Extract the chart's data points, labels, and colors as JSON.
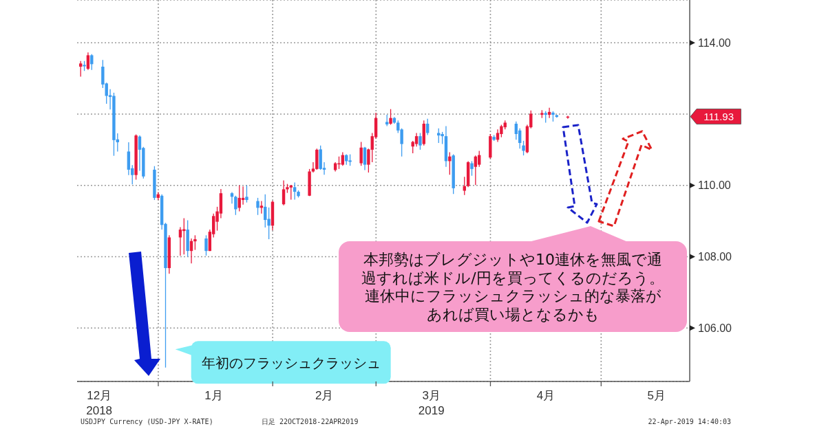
{
  "chart_data": {
    "type": "candlestick",
    "x": [
      "2018-12-11",
      "2018-12-12",
      "2018-12-13",
      "2018-12-14",
      "2018-12-17",
      "2018-12-18",
      "2018-12-19",
      "2018-12-20",
      "2018-12-21",
      "2018-12-24",
      "2018-12-25",
      "2018-12-26",
      "2018-12-27",
      "2018-12-28",
      "2018-12-31",
      "2019-01-01",
      "2019-01-02",
      "2019-01-03",
      "2019-01-04",
      "2019-01-07",
      "2019-01-08",
      "2019-01-09",
      "2019-01-10",
      "2019-01-11",
      "2019-01-14",
      "2019-01-15",
      "2019-01-16",
      "2019-01-17",
      "2019-01-18",
      "2019-01-21",
      "2019-01-22",
      "2019-01-23",
      "2019-01-24",
      "2019-01-25",
      "2019-01-28",
      "2019-01-29",
      "2019-01-30",
      "2019-01-31",
      "2019-02-01",
      "2019-02-04",
      "2019-02-05",
      "2019-02-06",
      "2019-02-07",
      "2019-02-08",
      "2019-02-11",
      "2019-02-12",
      "2019-02-13",
      "2019-02-14",
      "2019-02-15",
      "2019-02-18",
      "2019-02-19",
      "2019-02-20",
      "2019-02-21",
      "2019-02-22",
      "2019-02-25",
      "2019-02-26",
      "2019-02-27",
      "2019-02-28",
      "2019-03-01",
      "2019-03-04",
      "2019-03-05",
      "2019-03-06",
      "2019-03-07",
      "2019-03-08",
      "2019-03-11",
      "2019-03-12",
      "2019-03-13",
      "2019-03-14",
      "2019-03-15",
      "2019-03-18",
      "2019-03-19",
      "2019-03-20",
      "2019-03-21",
      "2019-03-22",
      "2019-03-25",
      "2019-03-26",
      "2019-03-27",
      "2019-03-28",
      "2019-03-29",
      "2019-04-01",
      "2019-04-02",
      "2019-04-03",
      "2019-04-04",
      "2019-04-05",
      "2019-04-08",
      "2019-04-09",
      "2019-04-10",
      "2019-04-11",
      "2019-04-12",
      "2019-04-15",
      "2019-04-16",
      "2019-04-17",
      "2019-04-18",
      "2019-04-19",
      "2019-04-22"
    ],
    "ohlc": [
      [
        113.33,
        113.49,
        113.05,
        113.42
      ],
      [
        113.38,
        113.49,
        113.21,
        113.34
      ],
      [
        113.27,
        113.73,
        113.24,
        113.65
      ],
      [
        113.65,
        113.68,
        113.24,
        113.4
      ],
      [
        113.33,
        113.52,
        112.73,
        112.83
      ],
      [
        112.86,
        112.88,
        112.29,
        112.51
      ],
      [
        112.53,
        112.7,
        112.13,
        112.48
      ],
      [
        112.51,
        112.6,
        110.83,
        111.27
      ],
      [
        111.29,
        111.46,
        110.95,
        111.21
      ],
      [
        110.95,
        111.21,
        110.29,
        110.44
      ],
      [
        110.48,
        110.57,
        110.03,
        110.29
      ],
      [
        110.29,
        111.43,
        110.16,
        111.4
      ],
      [
        111.37,
        111.4,
        110.41,
        111.0
      ],
      [
        111.05,
        111.08,
        110.19,
        110.25
      ],
      [
        110.44,
        110.54,
        109.59,
        109.65
      ],
      [
        109.65,
        109.81,
        109.59,
        109.75
      ],
      [
        109.71,
        109.75,
        108.76,
        108.89
      ],
      [
        108.92,
        108.95,
        104.89,
        107.68
      ],
      [
        107.68,
        108.6,
        107.52,
        108.54
      ],
      [
        108.54,
        108.83,
        108.03,
        108.76
      ],
      [
        108.72,
        109.08,
        108.06,
        108.77
      ],
      [
        108.76,
        109.02,
        108.0,
        108.16
      ],
      [
        108.16,
        108.51,
        107.81,
        108.44
      ],
      [
        108.43,
        108.6,
        108.19,
        108.49
      ],
      [
        108.51,
        108.6,
        108.03,
        108.16
      ],
      [
        108.16,
        108.76,
        108.16,
        108.7
      ],
      [
        108.63,
        109.21,
        108.54,
        109.14
      ],
      [
        108.98,
        109.4,
        108.73,
        109.27
      ],
      [
        109.21,
        109.9,
        109.08,
        109.78
      ],
      [
        109.78,
        109.81,
        109.49,
        109.68
      ],
      [
        109.68,
        109.71,
        109.17,
        109.33
      ],
      [
        109.37,
        110.0,
        109.27,
        109.65
      ],
      [
        109.59,
        109.97,
        109.46,
        109.65
      ],
      [
        109.68,
        110.0,
        109.52,
        109.59
      ],
      [
        109.56,
        109.65,
        109.17,
        109.37
      ],
      [
        109.37,
        109.56,
        109.21,
        109.43
      ],
      [
        109.4,
        109.75,
        108.82,
        109.03
      ],
      [
        109.06,
        109.38,
        108.49,
        108.87
      ],
      [
        108.87,
        109.57,
        108.74,
        109.54
      ],
      [
        109.47,
        110.14,
        109.44,
        109.89
      ],
      [
        109.89,
        110.04,
        109.79,
        109.95
      ],
      [
        109.94,
        110.01,
        109.6,
        110.0
      ],
      [
        109.95,
        110.08,
        109.6,
        109.82
      ],
      [
        109.82,
        109.86,
        109.66,
        109.7
      ],
      [
        109.71,
        110.46,
        109.7,
        110.39
      ],
      [
        110.39,
        110.65,
        110.36,
        110.47
      ],
      [
        110.46,
        111.03,
        110.44,
        111.0
      ],
      [
        111.01,
        111.12,
        110.44,
        110.46
      ],
      [
        110.49,
        110.65,
        110.3,
        110.44
      ],
      [
        110.43,
        110.65,
        110.39,
        110.62
      ],
      [
        110.6,
        110.81,
        110.46,
        110.62
      ],
      [
        110.58,
        110.93,
        110.55,
        110.85
      ],
      [
        110.85,
        110.87,
        110.58,
        110.68
      ],
      [
        110.7,
        110.87,
        110.55,
        110.66
      ],
      [
        110.62,
        111.22,
        110.55,
        111.06
      ],
      [
        111.06,
        111.08,
        110.43,
        110.58
      ],
      [
        110.58,
        111.03,
        110.36,
        111.01
      ],
      [
        111.0,
        111.47,
        110.65,
        111.38
      ],
      [
        111.35,
        112.04,
        111.31,
        111.89
      ],
      [
        111.78,
        111.98,
        111.66,
        111.71
      ],
      [
        111.73,
        112.14,
        111.7,
        111.89
      ],
      [
        111.89,
        111.92,
        111.73,
        111.76
      ],
      [
        111.76,
        111.82,
        111.47,
        111.54
      ],
      [
        111.57,
        111.6,
        110.81,
        111.16
      ],
      [
        111.09,
        111.25,
        110.9,
        111.22
      ],
      [
        111.16,
        111.47,
        111.09,
        111.38
      ],
      [
        111.38,
        111.47,
        111.0,
        111.12
      ],
      [
        111.16,
        111.82,
        111.12,
        111.73
      ],
      [
        111.73,
        111.87,
        111.41,
        111.47
      ],
      [
        111.47,
        111.6,
        111.19,
        111.4
      ],
      [
        111.44,
        111.5,
        111.16,
        111.38
      ],
      [
        111.38,
        111.66,
        110.52,
        110.68
      ],
      [
        110.68,
        110.93,
        110.3,
        110.81
      ],
      [
        110.84,
        110.87,
        109.76,
        109.92
      ],
      [
        109.85,
        110.24,
        109.73,
        109.98
      ],
      [
        109.98,
        110.68,
        109.95,
        110.65
      ],
      [
        110.62,
        110.68,
        110.27,
        110.46
      ],
      [
        110.52,
        110.84,
        110.01,
        110.81
      ],
      [
        110.58,
        110.97,
        110.52,
        110.85
      ],
      [
        110.78,
        111.44,
        110.75,
        111.38
      ],
      [
        111.36,
        111.41,
        111.25,
        111.28
      ],
      [
        111.28,
        111.57,
        111.22,
        111.47
      ],
      [
        111.44,
        111.7,
        111.35,
        111.66
      ],
      [
        111.63,
        111.82,
        111.57,
        111.76
      ],
      [
        111.73,
        111.79,
        111.28,
        111.44
      ],
      [
        111.54,
        111.6,
        111.03,
        111.19
      ],
      [
        111.12,
        111.25,
        110.84,
        110.97
      ],
      [
        110.93,
        111.7,
        110.9,
        111.66
      ],
      [
        111.63,
        112.1,
        111.6,
        112.01
      ],
      [
        111.98,
        112.11,
        111.89,
        112.03
      ],
      [
        112.03,
        112.08,
        111.76,
        111.98
      ],
      [
        111.98,
        112.18,
        111.89,
        112.06
      ],
      [
        112.04,
        112.08,
        111.79,
        111.98
      ],
      [
        111.97,
        111.98,
        111.9,
        111.92
      ],
      [
        111.9,
        111.95,
        111.87,
        111.93
      ]
    ],
    "colors": [
      "#e8193c",
      "#3d9cf0",
      "#e8193c",
      "#3d9cf0",
      "#3d9cf0",
      "#3d9cf0",
      "#3d9cf0",
      "#3d9cf0",
      "#3d9cf0",
      "#3d9cf0",
      "#3d9cf0",
      "#e8193c",
      "#3d9cf0",
      "#3d9cf0",
      "#3d9cf0",
      "#e8193c",
      "#3d9cf0",
      "#3d9cf0",
      "#e8193c",
      "#e8193c",
      "#e8193c",
      "#3d9cf0",
      "#e8193c",
      "#e8193c",
      "#3d9cf0",
      "#e8193c",
      "#e8193c",
      "#e8193c",
      "#e8193c",
      "#3d9cf0",
      "#3d9cf0",
      "#e8193c",
      "#e8193c",
      "#3d9cf0",
      "#3d9cf0",
      "#e8193c",
      "#3d9cf0",
      "#3d9cf0",
      "#e8193c",
      "#e8193c",
      "#e8193c",
      "#e8193c",
      "#3d9cf0",
      "#3d9cf0",
      "#e8193c",
      "#e8193c",
      "#e8193c",
      "#3d9cf0",
      "#3d9cf0",
      "#e8193c",
      "#e8193c",
      "#e8193c",
      "#3d9cf0",
      "#3d9cf0",
      "#e8193c",
      "#3d9cf0",
      "#e8193c",
      "#e8193c",
      "#e8193c",
      "#3d9cf0",
      "#e8193c",
      "#3d9cf0",
      "#3d9cf0",
      "#3d9cf0",
      "#e8193c",
      "#e8193c",
      "#3d9cf0",
      "#e8193c",
      "#3d9cf0",
      "#3d9cf0",
      "#3d9cf0",
      "#3d9cf0",
      "#e8193c",
      "#3d9cf0",
      "#e8193c",
      "#e8193c",
      "#3d9cf0",
      "#e8193c",
      "#e8193c",
      "#e8193c",
      "#3d9cf0",
      "#e8193c",
      "#e8193c",
      "#e8193c",
      "#3d9cf0",
      "#3d9cf0",
      "#3d9cf0",
      "#e8193c",
      "#e8193c",
      "#e8193c",
      "#3d9cf0",
      "#e8193c",
      "#3d9cf0",
      "#3d9cf0",
      "#e8193c"
    ],
    "xlim": [
      "2018-12-10",
      "2019-05-25"
    ],
    "xticks": [
      {
        "value": "2018-12-16",
        "label": "12月\n2018"
      },
      {
        "value": "2019-01-01",
        "label": null
      },
      {
        "value": "2019-01-16",
        "label": "1月"
      },
      {
        "value": "2019-02-01",
        "label": null
      },
      {
        "value": "2019-02-15",
        "label": "2月"
      },
      {
        "value": "2019-03-01",
        "label": null
      },
      {
        "value": "2019-03-16",
        "label": "3月\n2019"
      },
      {
        "value": "2019-04-01",
        "label": null
      },
      {
        "value": "2019-04-16",
        "label": "4月"
      },
      {
        "value": "2019-05-01",
        "label": null
      },
      {
        "value": "2019-05-16",
        "label": "5月"
      }
    ],
    "ylim": [
      104.5,
      115.2
    ],
    "yticks": [
      {
        "value": 106,
        "label": "106.00"
      },
      {
        "value": 108,
        "label": "108.00"
      },
      {
        "value": 110,
        "label": "110.00"
      },
      {
        "value": 112,
        "label": null
      },
      {
        "value": 114,
        "label": "114.00"
      }
    ],
    "grid": true,
    "annotations": [
      {
        "text": "年初のフラッシュクラッシュ",
        "x": "2019-01-03",
        "y": 105.4
      },
      "111.93",
      "本邦勢はブレグジットや10連休を無風で通過すれば米ドル/円を買ってくるのだろう。連休中にフラッシュクラッシュ的な暴落があれば買い場となるかも",
      "USDJPY Currency (USD-JPY X-RATE)",
      "日足 22OCT2018-22APR2019",
      "22-Apr-2019 14:40:03"
    ]
  }
}
